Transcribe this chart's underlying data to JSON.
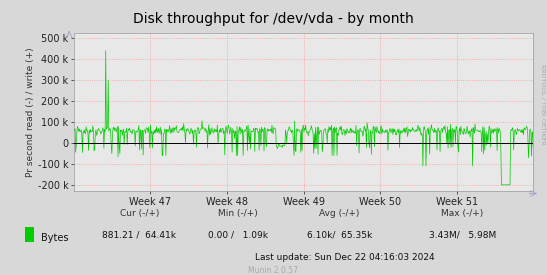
{
  "title": "Disk throughput for /dev/vda - by month",
  "ylabel": "Pr second read (-) / write (+)",
  "background_color": "#d8d8d8",
  "plot_bg_color": "#e8e8e8",
  "grid_color": "#ff9999",
  "line_color": "#00cc00",
  "zero_line_color": "#000000",
  "yticks": [
    -200000,
    -100000,
    0,
    100000,
    200000,
    300000,
    400000,
    500000
  ],
  "ytick_labels": [
    "-200 k",
    "-100 k",
    "0",
    "100 k",
    "200 k",
    "300 k",
    "400 k",
    "500 k"
  ],
  "ylim": [
    -230000,
    525000
  ],
  "xlabels": [
    "Week 47",
    "Week 48",
    "Week 49",
    "Week 50",
    "Week 51"
  ],
  "legend_color": "#00cc00",
  "lastupdate_text": "Last update: Sun Dec 22 04:16:03 2024",
  "munin_text": "Munin 2.0.57",
  "rrdtool_text": "RRDTOOL / TOBI OETIKER",
  "seed": 42,
  "n_points": 750
}
